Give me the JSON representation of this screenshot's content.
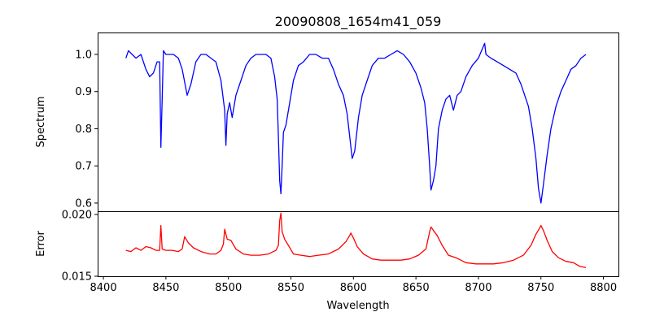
{
  "chart_data": [
    {
      "type": "line",
      "title": "20090808_1654m41_059",
      "xlabel": "",
      "ylabel": "Spectrum",
      "xlim": [
        8395.4,
        8812
      ],
      "ylim": [
        0.578,
        1.059
      ],
      "yticks": [
        "0.6",
        "0.7",
        "0.8",
        "0.9",
        "1.0"
      ],
      "color": "#0000ff",
      "series": [
        {
          "name": "Spectrum",
          "x": [
            8418,
            8420,
            8423,
            8426,
            8430,
            8434,
            8437,
            8440,
            8443,
            8445,
            8446,
            8447,
            8448,
            8450,
            8453,
            8456,
            8460,
            8463,
            8467,
            8470,
            8474,
            8478,
            8482,
            8486,
            8490,
            8494,
            8497,
            8498,
            8499,
            8501,
            8503,
            8506,
            8510,
            8514,
            8518,
            8522,
            8526,
            8530,
            8534,
            8537,
            8539,
            8540,
            8541,
            8542,
            8543,
            8544,
            8546,
            8549,
            8552,
            8556,
            8560,
            8565,
            8570,
            8575,
            8580,
            8584,
            8588,
            8592,
            8595,
            8597,
            8599,
            8601,
            8604,
            8607,
            8611,
            8615,
            8620,
            8625,
            8630,
            8635,
            8640,
            8645,
            8650,
            8654,
            8657,
            8659,
            8661,
            8662,
            8664,
            8666,
            8668,
            8671,
            8674,
            8677,
            8680,
            8683,
            8686,
            8690,
            8695,
            8700,
            8705,
            8706,
            8710,
            8715,
            8720,
            8725,
            8730,
            8734,
            8737,
            8740,
            8743,
            8746,
            8748,
            8750,
            8752,
            8755,
            8758,
            8762,
            8766,
            8770,
            8774,
            8778,
            8782,
            8786
          ],
          "y": [
            0.99,
            1.01,
            1.0,
            0.99,
            1.0,
            0.96,
            0.94,
            0.95,
            0.98,
            0.98,
            0.75,
            0.88,
            1.01,
            1.0,
            1.0,
            1.0,
            0.99,
            0.96,
            0.89,
            0.92,
            0.98,
            1.0,
            1.0,
            0.99,
            0.98,
            0.93,
            0.85,
            0.755,
            0.84,
            0.87,
            0.83,
            0.89,
            0.93,
            0.97,
            0.99,
            1.0,
            1.0,
            1.0,
            0.99,
            0.94,
            0.88,
            0.78,
            0.66,
            0.625,
            0.7,
            0.79,
            0.81,
            0.87,
            0.93,
            0.97,
            0.98,
            1.0,
            1.0,
            0.99,
            0.99,
            0.96,
            0.92,
            0.89,
            0.84,
            0.78,
            0.72,
            0.74,
            0.83,
            0.89,
            0.93,
            0.97,
            0.99,
            0.99,
            1.0,
            1.01,
            1.0,
            0.98,
            0.95,
            0.91,
            0.87,
            0.8,
            0.7,
            0.635,
            0.66,
            0.7,
            0.8,
            0.85,
            0.88,
            0.89,
            0.85,
            0.89,
            0.9,
            0.94,
            0.97,
            0.99,
            1.03,
            1.0,
            0.99,
            0.98,
            0.97,
            0.96,
            0.95,
            0.92,
            0.89,
            0.86,
            0.8,
            0.72,
            0.64,
            0.6,
            0.65,
            0.73,
            0.8,
            0.86,
            0.9,
            0.93,
            0.96,
            0.97,
            0.99,
            1.0
          ]
        }
      ]
    },
    {
      "type": "line",
      "title": "",
      "xlabel": "Wavelength",
      "ylabel": "Error",
      "xlim": [
        8395.4,
        8812
      ],
      "ylim": [
        0.015,
        0.02026
      ],
      "yticks": [
        "0.015",
        "0.020"
      ],
      "xticks": [
        "8400",
        "8450",
        "8500",
        "8550",
        "8600",
        "8650",
        "8700",
        "8750",
        "8800"
      ],
      "color": "#ff0000",
      "series": [
        {
          "name": "Error",
          "x": [
            8418,
            8422,
            8426,
            8430,
            8434,
            8438,
            8442,
            8445,
            8446,
            8447,
            8450,
            8455,
            8460,
            8463,
            8465,
            8468,
            8472,
            8478,
            8485,
            8490,
            8494,
            8496,
            8497,
            8499,
            8502,
            8506,
            8512,
            8518,
            8525,
            8532,
            8538,
            8540,
            8541,
            8542,
            8543,
            8545,
            8548,
            8552,
            8558,
            8565,
            8572,
            8580,
            8588,
            8594,
            8597,
            8598,
            8600,
            8603,
            8608,
            8615,
            8622,
            8630,
            8638,
            8645,
            8652,
            8658,
            8661,
            8662,
            8664,
            8667,
            8671,
            8676,
            8682,
            8690,
            8698,
            8705,
            8712,
            8720,
            8728,
            8736,
            8742,
            8746,
            8749,
            8750,
            8752,
            8755,
            8759,
            8764,
            8770,
            8776,
            8781,
            8786
          ],
          "y": [
            0.0171,
            0.017,
            0.0173,
            0.0171,
            0.0174,
            0.0173,
            0.0171,
            0.0171,
            0.0191,
            0.0172,
            0.0171,
            0.0171,
            0.017,
            0.0172,
            0.0182,
            0.0177,
            0.0173,
            0.017,
            0.0168,
            0.0168,
            0.0171,
            0.0176,
            0.0188,
            0.018,
            0.0179,
            0.0172,
            0.0168,
            0.0167,
            0.0167,
            0.0168,
            0.0171,
            0.0175,
            0.0195,
            0.0201,
            0.0186,
            0.018,
            0.0175,
            0.0168,
            0.0167,
            0.0166,
            0.0167,
            0.0168,
            0.0172,
            0.0178,
            0.0183,
            0.0185,
            0.0181,
            0.0174,
            0.0168,
            0.0164,
            0.0163,
            0.0163,
            0.0163,
            0.0164,
            0.0167,
            0.0172,
            0.0186,
            0.019,
            0.0187,
            0.0183,
            0.0175,
            0.0167,
            0.0165,
            0.0161,
            0.016,
            0.016,
            0.016,
            0.0161,
            0.0163,
            0.0167,
            0.0175,
            0.0184,
            0.0189,
            0.0191,
            0.0187,
            0.0179,
            0.017,
            0.0165,
            0.0162,
            0.0161,
            0.0158,
            0.0157
          ]
        }
      ]
    }
  ]
}
